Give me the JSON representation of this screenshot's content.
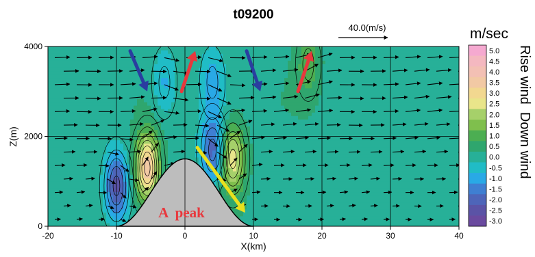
{
  "chart_data": {
    "type": "heatmap",
    "title": "t09200",
    "xlabel": "X(km)",
    "ylabel": "Z(m)",
    "xlim": [
      -20,
      40
    ],
    "ylim": [
      0,
      4000
    ],
    "x_ticks": [
      "-20",
      "-10",
      "0",
      "10",
      "20",
      "30",
      "40"
    ],
    "y_ticks": [
      "0",
      "2000",
      "4000"
    ],
    "colorbar": {
      "title": "m/sec",
      "levels": [
        5.0,
        4.5,
        4.0,
        3.5,
        3.0,
        2.5,
        2.0,
        1.5,
        1.0,
        0.5,
        0.0,
        -0.5,
        -1.0,
        -1.5,
        -2.0,
        -2.5,
        -3.0
      ],
      "labels": [
        "5.0",
        "4.5",
        "4.0",
        "3.5",
        "3.0",
        "2.5",
        "2.0",
        "1.5",
        "1.0",
        "0.5",
        "0.0",
        "-0.5",
        "-1.0",
        "-1.5",
        "-2.0",
        "-2.5",
        "-3.0"
      ],
      "colors": [
        "#f5a9d0",
        "#f4b8c0",
        "#f3c0b4",
        "#f2c9a4",
        "#f2d890",
        "#e9e58a",
        "#a6d06a",
        "#7fbf4d",
        "#4cae52",
        "#2fa66e",
        "#27b098",
        "#20bcc6",
        "#29a9e6",
        "#3f7fd2",
        "#4e65b9",
        "#5b53a6",
        "#6a4a9f"
      ]
    },
    "side_label": "Rise wind  Down wind",
    "reference_vector": "40.0(m/s)",
    "terrain": {
      "name": "A peak",
      "peak_x_km": 0,
      "peak_z_m": 1500,
      "base_x_km": [
        -10,
        10
      ],
      "color": "#bdbdbd"
    },
    "annotation_text": "A  peak",
    "vertical_wind_features": [
      {
        "x_km": -5.5,
        "z_m": 1300,
        "w": 3.5,
        "sign": "up"
      },
      {
        "x_km": 7.0,
        "z_m": 1500,
        "w": 2.5,
        "sign": "up"
      },
      {
        "x_km": -10.0,
        "z_m": 900,
        "w": -2.5,
        "sign": "down"
      },
      {
        "x_km": 4.0,
        "z_m": 1700,
        "w": -2.0,
        "sign": "down"
      },
      {
        "x_km": -3.0,
        "z_m": 3200,
        "w": -1.0,
        "sign": "down"
      },
      {
        "x_km": 4.0,
        "z_m": 3200,
        "w": -1.0,
        "sign": "down"
      },
      {
        "x_km": 18.0,
        "z_m": 3600,
        "w": 1.0,
        "sign": "up"
      }
    ],
    "flow_arrows": [
      {
        "color": "#2a3da0",
        "from": [
          -8,
          3900
        ],
        "to": [
          -5.5,
          3000
        ],
        "meaning": "down"
      },
      {
        "color": "#e8383d",
        "from": [
          -0.5,
          3000
        ],
        "to": [
          1.5,
          3900
        ],
        "meaning": "up"
      },
      {
        "color": "#2a3da0",
        "from": [
          9,
          3900
        ],
        "to": [
          11,
          3000
        ],
        "meaning": "down"
      },
      {
        "color": "#e8383d",
        "from": [
          16.5,
          3000
        ],
        "to": [
          18.5,
          3900
        ],
        "meaning": "up"
      },
      {
        "color": "#e8e01e",
        "from": [
          1.8,
          1750
        ],
        "to": [
          8.8,
          300
        ],
        "meaning": "down"
      }
    ]
  }
}
